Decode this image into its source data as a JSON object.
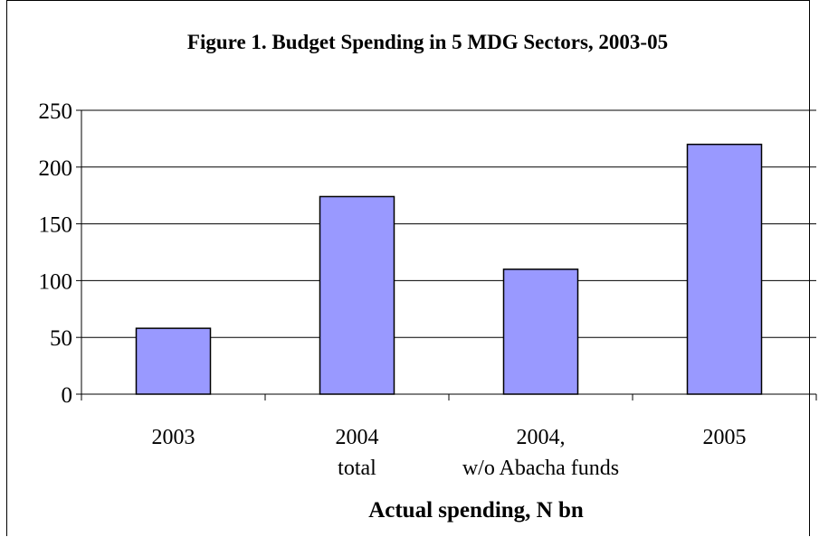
{
  "chart_data": {
    "type": "bar",
    "title": "Figure 1. Budget Spending in 5 MDG Sectors, 2003-05",
    "xlabel": "Actual spending, N bn",
    "ylabel": "",
    "categories": [
      [
        "2003"
      ],
      [
        "2004",
        "total"
      ],
      [
        "2004,",
        "w/o Abacha funds"
      ],
      [
        "2005"
      ]
    ],
    "values": [
      58,
      174,
      110,
      220
    ],
    "ylim": [
      0,
      250
    ],
    "yticks": [
      "0",
      "50",
      "100",
      "150",
      "200",
      "250"
    ],
    "ytick_values": [
      0,
      50,
      100,
      150,
      200,
      250
    ],
    "grid": true,
    "bar_color": "#9999ff"
  }
}
